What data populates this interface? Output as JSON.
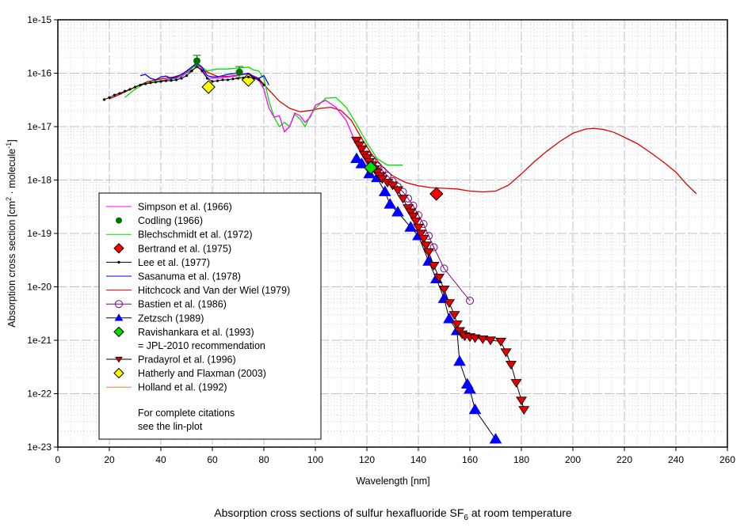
{
  "chart_data": {
    "type": "line",
    "title": "Absorption cross sections of sulfur hexafluoride SF6 at room temperature",
    "title_main": "Absorption cross sections of sulfur hexafluoride SF",
    "title_sub": "6",
    "title_tail": " at room temperature",
    "xlabel": "Wavelength [nm]",
    "ylabel_parts": [
      "Absorption cross section [cm",
      "2",
      " · molecule",
      "-1",
      "]"
    ],
    "xlim": [
      0,
      260
    ],
    "ylim": [
      1e-23,
      1e-15
    ],
    "yscale": "log",
    "grid": true,
    "x_ticks": [
      "0",
      "20",
      "40",
      "60",
      "80",
      "100",
      "120",
      "140",
      "160",
      "180",
      "200",
      "220",
      "240",
      "260"
    ],
    "y_ticks": [
      "1e-15",
      "1e-16",
      "1e-17",
      "1e-18",
      "1e-19",
      "1e-20",
      "1e-21",
      "1e-22",
      "1e-23"
    ],
    "legend_position": "lower-left",
    "legend_note": [
      "For complete citations",
      "see the lin-plot"
    ],
    "series": [
      {
        "name": "Simpson et al. (1966)",
        "color": "#ff00ff",
        "marker": "none",
        "x": [
          40,
          44,
          48,
          52,
          54,
          56,
          58,
          62,
          66,
          70,
          74,
          76,
          78,
          80,
          82,
          84,
          86,
          88,
          90,
          92,
          94,
          96,
          98,
          100,
          104,
          108,
          112,
          116,
          120,
          124,
          126
        ],
        "y": [
          7e-17,
          8e-17,
          8.5e-17,
          1.3e-16,
          1.6e-16,
          1.2e-16,
          8e-17,
          8e-17,
          8.5e-17,
          9e-17,
          1e-16,
          8.5e-17,
          7.5e-17,
          5e-17,
          2.2e-17,
          1.5e-17,
          1.6e-17,
          8e-18,
          1e-17,
          1.8e-17,
          1.6e-17,
          1.2e-17,
          1.5e-17,
          2.5e-17,
          3.1e-17,
          2.3e-17,
          1.3e-17,
          4.5e-18,
          2e-18,
          1.3e-18,
          1e-18
        ]
      },
      {
        "name": "Codling (1966)",
        "color": "#007000",
        "marker": "circle-errorbar",
        "x": [
          54,
          70.5
        ],
        "y": [
          1.7e-16,
          1.05e-16
        ]
      },
      {
        "name": "Blechschmidt et al. (1972)",
        "color": "#00e000",
        "marker": "none",
        "x": [
          26,
          30,
          34,
          38,
          42,
          46,
          50,
          54,
          58,
          62,
          66,
          70,
          74,
          76,
          78,
          80,
          82,
          84,
          86,
          88,
          90,
          92,
          94,
          96,
          98,
          100,
          104,
          108,
          112,
          116,
          120,
          124,
          128,
          134
        ],
        "y": [
          3.5e-17,
          5e-17,
          6.5e-17,
          7e-17,
          7.5e-17,
          8e-17,
          1e-16,
          1.5e-16,
          1.1e-16,
          1.2e-16,
          1.2e-16,
          1.25e-16,
          1.3e-16,
          1.15e-16,
          1.1e-16,
          8e-17,
          3e-17,
          1.5e-17,
          1e-17,
          1.2e-17,
          1e-17,
          1.7e-17,
          1.4e-17,
          1e-17,
          1.6e-17,
          2.2e-17,
          3.4e-17,
          3.5e-17,
          2.3e-17,
          1.1e-17,
          5e-18,
          2.5e-18,
          1.9e-18,
          1.9e-18
        ]
      },
      {
        "name": "Bertrand et al. (1975)",
        "color": "#ff0000",
        "marker": "diamond",
        "x": [
          147
        ],
        "y": [
          5.5e-19
        ]
      },
      {
        "name": "Lee et al. (1977)",
        "color": "#000000",
        "marker": "dot",
        "x": [
          18,
          20,
          22,
          24,
          26,
          28,
          30,
          32,
          34,
          36,
          38,
          40,
          42,
          44,
          46,
          48,
          50,
          52,
          54,
          56,
          58,
          60,
          62,
          64,
          66,
          68,
          70,
          72,
          74,
          76,
          78,
          80
        ],
        "y": [
          3.2e-17,
          3.5e-17,
          3.9e-17,
          4.2e-17,
          4.6e-17,
          5e-17,
          5.5e-17,
          6e-17,
          6.3e-17,
          6.6e-17,
          6.8e-17,
          7e-17,
          7.2e-17,
          7.3e-17,
          7.5e-17,
          8e-17,
          9e-17,
          1.1e-16,
          1.35e-16,
          1.1e-16,
          8e-17,
          7e-17,
          7.2e-17,
          7.5e-17,
          7.5e-17,
          7.8e-17,
          8e-17,
          8.2e-17,
          8.5e-17,
          8e-17,
          7.5e-17,
          6e-17
        ]
      },
      {
        "name": "Sasanuma et al. (1978)",
        "color": "#0000ff",
        "marker": "none",
        "x": [
          32,
          34,
          36,
          38,
          40,
          42,
          44,
          46,
          48,
          50,
          52,
          54,
          56,
          58,
          60,
          62,
          64,
          66,
          68,
          70,
          72,
          74,
          76,
          78,
          80,
          82
        ],
        "y": [
          9e-17,
          9.5e-17,
          8e-17,
          7.5e-17,
          8.5e-17,
          8.8e-17,
          8e-17,
          8.5e-17,
          9.5e-17,
          1.1e-16,
          1.3e-16,
          1.55e-16,
          1.3e-16,
          9e-17,
          8.5e-17,
          8.5e-17,
          9e-17,
          9.5e-17,
          9.8e-17,
          1e-16,
          9.5e-17,
          1e-16,
          8.5e-17,
          8e-17,
          9e-17,
          6e-17
        ]
      },
      {
        "name": "Hitchcock and Van der Wiel (1979)",
        "color": "#e00000",
        "marker": "none",
        "x": [
          20,
          25,
          30,
          35,
          40,
          45,
          50,
          54,
          58,
          62,
          66,
          70,
          74,
          78,
          82,
          86,
          90,
          94,
          98,
          102,
          106,
          110,
          114,
          118,
          122,
          126,
          130,
          135,
          140,
          145,
          150,
          155,
          160,
          165,
          170,
          175,
          180,
          185,
          190,
          195,
          200,
          205,
          208,
          212,
          216,
          220,
          225,
          230,
          235,
          240,
          244,
          248
        ],
        "y": [
          3.3e-17,
          4.2e-17,
          5.5e-17,
          7e-17,
          7.8e-17,
          8.5e-17,
          1e-16,
          1.3e-16,
          1.05e-16,
          8.7e-17,
          8.7e-17,
          9.2e-17,
          9.8e-17,
          8e-17,
          4.8e-17,
          3e-17,
          2.2e-17,
          1.9e-17,
          2e-17,
          2.2e-17,
          2.3e-17,
          2e-17,
          1.3e-17,
          6e-18,
          3e-18,
          1.8e-18,
          1.2e-18,
          9e-19,
          7.8e-19,
          7.2e-19,
          7e-19,
          6.8e-19,
          6.2e-19,
          6e-19,
          6.2e-19,
          8e-19,
          1.3e-18,
          2.2e-18,
          3.5e-18,
          5.3e-18,
          7.5e-18,
          9e-18,
          9.3e-18,
          8.8e-18,
          7.8e-18,
          6.3e-18,
          4.8e-18,
          3.3e-18,
          2.2e-18,
          1.4e-18,
          8.5e-19,
          5.5e-19
        ]
      },
      {
        "name": "Bastien et al. (1986)",
        "color": "#800080",
        "marker": "open-circle",
        "x": [
          120,
          122,
          124,
          126,
          128,
          130,
          132,
          134,
          136,
          138,
          140,
          142,
          144,
          146,
          150,
          160
        ],
        "y": [
          3e-18,
          2.4e-18,
          1.8e-18,
          1.5e-18,
          1.2e-18,
          9.5e-19,
          7.5e-19,
          6e-19,
          4.5e-19,
          3.3e-19,
          2.2e-19,
          1.5e-19,
          9e-20,
          5.5e-20,
          2.2e-20,
          5.5e-21
        ]
      },
      {
        "name": "Zetzsch (1989)",
        "color": "#0000ff",
        "marker": "triangle-up",
        "line_color": "#000000",
        "x": [
          116,
          118,
          121,
          124,
          127,
          129,
          132,
          137,
          140,
          144,
          147,
          150,
          152,
          155,
          156,
          159,
          160,
          162,
          170
        ],
        "y": [
          2.5e-18,
          2e-18,
          1.3e-18,
          1.1e-18,
          6e-19,
          3.5e-19,
          2.5e-19,
          1.3e-19,
          9e-20,
          3e-20,
          1.4e-20,
          6e-21,
          2.5e-21,
          1.5e-21,
          4e-22,
          1.5e-22,
          1.2e-22,
          5e-23,
          1.4e-23
        ]
      },
      {
        "name": "Ravishankara et al. (1993)",
        "name_line2": "= JPL-2010 recommendation",
        "color": "#00e000",
        "marker": "diamond",
        "x": [
          121.5
        ],
        "y": [
          1.7e-18
        ]
      },
      {
        "name": "Pradayrol et al. (1996)",
        "color": "#e00000",
        "marker": "triangle-down",
        "line_color": "#000000",
        "x": [
          116,
          117,
          118,
          119,
          120,
          121,
          122,
          123,
          124,
          125,
          126,
          128,
          130,
          132,
          134,
          136,
          137,
          138,
          139,
          140,
          141,
          142,
          143,
          144,
          146,
          148,
          150,
          152,
          154,
          155,
          156,
          157,
          158,
          160,
          162,
          165,
          168,
          172,
          174,
          176,
          178,
          180,
          181
        ],
        "y": [
          5.5e-18,
          4.5e-18,
          3.8e-18,
          3e-18,
          2.6e-18,
          2.2e-18,
          1.9e-18,
          1.6e-18,
          1.4e-18,
          1.2e-18,
          1.05e-18,
          9e-19,
          8e-19,
          6.5e-19,
          4.5e-19,
          3e-19,
          2.5e-19,
          2.1e-19,
          1.7e-19,
          1.3e-19,
          1e-19,
          8e-20,
          6e-20,
          4.5e-20,
          2.5e-20,
          1.5e-20,
          9e-21,
          5e-21,
          3e-21,
          2e-21,
          1.5e-21,
          1.3e-21,
          1.2e-21,
          1.15e-21,
          1.1e-21,
          1.05e-21,
          1e-21,
          9.5e-22,
          6e-22,
          3.5e-22,
          1.6e-22,
          7.5e-23,
          5e-23
        ]
      },
      {
        "name": "Hatherly and Flaxman (2003)",
        "color": "#ffff00",
        "marker": "diamond",
        "x": [
          58.5,
          74
        ],
        "y": [
          5.5e-17,
          7.5e-17
        ]
      },
      {
        "name": "Holland et al. (1992)",
        "color": "#f08040",
        "marker": "none",
        "x": [
          36,
          40,
          44,
          48,
          52,
          54,
          56,
          58,
          60,
          64,
          68,
          72,
          76,
          78,
          80,
          82,
          84,
          86,
          88,
          90,
          92,
          94,
          95
        ],
        "y": [
          6e-17,
          6.5e-17,
          7e-17,
          8e-17,
          1.2e-16,
          1.3e-16,
          1e-16,
          7e-17,
          6.5e-17,
          6.8e-17,
          7e-17,
          8e-17,
          7.5e-17,
          5e-17,
          3.5e-17,
          2.8e-17,
          2.5e-17,
          2e-17,
          2.6e-17,
          2.2e-17,
          3.5e-17,
          3.8e-17,
          4e-17
        ]
      }
    ]
  }
}
